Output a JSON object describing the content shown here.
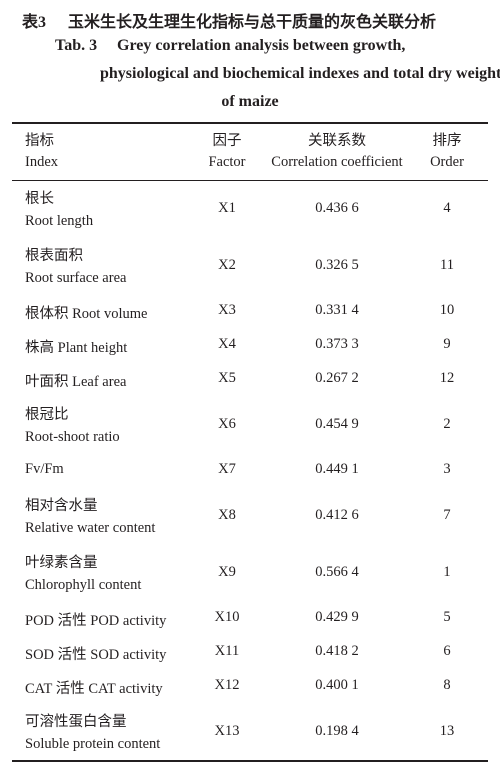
{
  "caption": {
    "cn_label": "表3",
    "cn_title": "玉米生长及生理生化指标与总干质量的灰色关联分析",
    "en_label": "Tab. 3",
    "en_title": [
      "Grey correlation analysis between growth,",
      "physiological and biochemical indexes and total dry weight",
      "of maize"
    ]
  },
  "table": {
    "header": [
      [
        "指标",
        "Index"
      ],
      [
        "因子",
        "Factor"
      ],
      [
        "关联系数",
        "Correlation coefficient"
      ],
      [
        "排序",
        "Order"
      ]
    ],
    "rows": [
      {
        "index": [
          "根长",
          "Root length"
        ],
        "factor": "X1",
        "coefficient": "0.436 6",
        "order": 4
      },
      {
        "index": [
          "根表面积",
          "Root surface area"
        ],
        "factor": "X2",
        "coefficient": "0.326 5",
        "order": 11
      },
      {
        "index": [
          "根体积 Root volume"
        ],
        "factor": "X3",
        "coefficient": "0.331 4",
        "order": 10
      },
      {
        "index": [
          "株高 Plant height"
        ],
        "factor": "X4",
        "coefficient": "0.373 3",
        "order": 9
      },
      {
        "index": [
          "叶面积 Leaf area"
        ],
        "factor": "X5",
        "coefficient": "0.267 2",
        "order": 12
      },
      {
        "index": [
          "根冠比",
          "Root-shoot ratio"
        ],
        "factor": "X6",
        "coefficient": "0.454 9",
        "order": 2
      },
      {
        "index": [
          "Fv/Fm"
        ],
        "factor": "X7",
        "coefficient": "0.449 1",
        "order": 3
      },
      {
        "index": [
          "相对含水量",
          "Relative water content"
        ],
        "factor": "X8",
        "coefficient": "0.412 6",
        "order": 7
      },
      {
        "index": [
          "叶绿素含量",
          "Chlorophyll content"
        ],
        "factor": "X9",
        "coefficient": "0.566 4",
        "order": 1
      },
      {
        "index": [
          "POD 活性 POD activity"
        ],
        "factor": "X10",
        "coefficient": "0.429 9",
        "order": 5
      },
      {
        "index": [
          "SOD 活性 SOD activity"
        ],
        "factor": "X11",
        "coefficient": "0.418 2",
        "order": 6
      },
      {
        "index": [
          "CAT 活性 CAT activity"
        ],
        "factor": "X12",
        "coefficient": "0.400 1",
        "order": 8
      },
      {
        "index": [
          "可溶性蛋白含量",
          "Soluble protein content"
        ],
        "factor": "X13",
        "coefficient": "0.198 4",
        "order": 13
      }
    ]
  }
}
